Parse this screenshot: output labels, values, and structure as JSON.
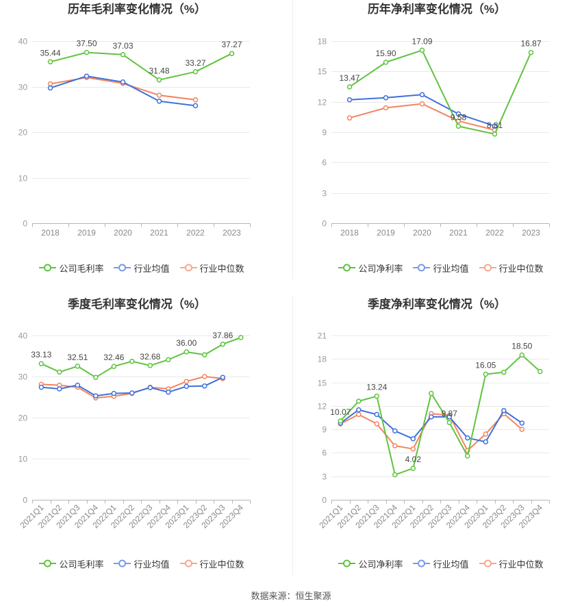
{
  "footer": {
    "source": "数据来源：恒生聚源"
  },
  "chart_data": [
    {
      "type": "line",
      "title": "历年毛利率变化情况（%）",
      "xlabel": "",
      "ylabel": "",
      "grid": true,
      "legend_position": "bottom",
      "categories": [
        "2018",
        "2019",
        "2020",
        "2021",
        "2022",
        "2023"
      ],
      "ylim": [
        0,
        40
      ],
      "yticks": [
        0,
        10,
        20,
        30,
        40
      ],
      "series": [
        {
          "name": "公司毛利率",
          "color": "#5fc33e",
          "values": [
            35.44,
            37.5,
            37.03,
            31.48,
            33.27,
            37.27
          ],
          "labels": [
            "35.44",
            "37.50",
            "37.03",
            "31.48",
            "33.27",
            "37.27"
          ]
        },
        {
          "name": "行业均值",
          "color": "#3e71dc",
          "values": [
            29.7,
            32.3,
            31.0,
            26.8,
            25.8,
            null
          ]
        },
        {
          "name": "行业中位数",
          "color": "#f4845e",
          "values": [
            30.6,
            32.0,
            30.7,
            28.1,
            27.1,
            null
          ]
        }
      ]
    },
    {
      "type": "line",
      "title": "历年净利率变化情况（%）",
      "xlabel": "",
      "ylabel": "",
      "grid": true,
      "legend_position": "bottom",
      "categories": [
        "2018",
        "2019",
        "2020",
        "2021",
        "2022",
        "2023"
      ],
      "ylim": [
        0,
        18
      ],
      "yticks": [
        0,
        3,
        6,
        9,
        12,
        15,
        18
      ],
      "series": [
        {
          "name": "公司净利率",
          "color": "#5fc33e",
          "values": [
            13.47,
            15.9,
            17.09,
            9.58,
            8.81,
            16.87
          ],
          "labels": [
            "13.47",
            "15.90",
            "17.09",
            "9.58",
            "8.81",
            "16.87"
          ]
        },
        {
          "name": "行业均值",
          "color": "#3e71dc",
          "values": [
            12.2,
            12.4,
            12.7,
            10.8,
            9.6,
            null
          ]
        },
        {
          "name": "行业中位数",
          "color": "#f4845e",
          "values": [
            10.4,
            11.4,
            11.8,
            10.1,
            9.2,
            null
          ]
        }
      ]
    },
    {
      "type": "line",
      "title": "季度毛利率变化情况（%）",
      "xlabel": "",
      "ylabel": "",
      "grid": true,
      "legend_position": "bottom",
      "categories": [
        "2021Q1",
        "2021Q2",
        "2021Q3",
        "2021Q4",
        "2022Q1",
        "2022Q2",
        "2022Q3",
        "2022Q4",
        "2023Q1",
        "2023Q2",
        "2023Q3",
        "2023Q4"
      ],
      "ylim": [
        0,
        40
      ],
      "yticks": [
        0,
        10,
        20,
        30,
        40
      ],
      "series": [
        {
          "name": "公司毛利率",
          "color": "#5fc33e",
          "values": [
            33.13,
            31.1,
            32.51,
            29.8,
            32.46,
            33.7,
            32.68,
            34.1,
            36.0,
            35.3,
            37.86,
            39.5
          ],
          "labels": [
            "33.13",
            null,
            "32.51",
            null,
            "32.46",
            null,
            "32.68",
            null,
            "36.00",
            null,
            "37.86",
            null
          ]
        },
        {
          "name": "行业均值",
          "color": "#3e71dc",
          "values": [
            27.4,
            27.0,
            27.9,
            25.3,
            25.9,
            26.0,
            27.3,
            26.2,
            27.6,
            27.7,
            29.8,
            null
          ]
        },
        {
          "name": "行业中位数",
          "color": "#f4845e",
          "values": [
            28.1,
            27.9,
            27.4,
            24.8,
            25.2,
            25.9,
            27.4,
            27.0,
            28.8,
            30.0,
            29.5,
            null
          ]
        }
      ]
    },
    {
      "type": "line",
      "title": "季度净利率变化情况（%）",
      "xlabel": "",
      "ylabel": "",
      "grid": true,
      "legend_position": "bottom",
      "categories": [
        "2021Q1",
        "2021Q2",
        "2021Q3",
        "2021Q4",
        "2022Q1",
        "2022Q2",
        "2022Q3",
        "2022Q4",
        "2023Q1",
        "2023Q2",
        "2023Q3",
        "2023Q4"
      ],
      "ylim": [
        0,
        21
      ],
      "yticks": [
        0,
        3,
        6,
        9,
        12,
        15,
        18,
        21
      ],
      "series": [
        {
          "name": "公司净利率",
          "color": "#5fc33e",
          "values": [
            10.07,
            12.6,
            13.24,
            3.2,
            4.02,
            13.6,
            9.87,
            5.6,
            16.05,
            16.3,
            18.5,
            16.4
          ],
          "labels": [
            "10.07",
            null,
            "13.24",
            null,
            "4.02",
            null,
            "9.87",
            null,
            "16.05",
            null,
            "18.50",
            null
          ]
        },
        {
          "name": "行业均值",
          "color": "#3e71dc",
          "values": [
            9.8,
            11.5,
            10.9,
            8.8,
            7.8,
            10.6,
            10.6,
            7.9,
            7.4,
            11.4,
            9.8,
            null
          ]
        },
        {
          "name": "行业中位数",
          "color": "#f4845e",
          "values": [
            9.7,
            10.9,
            9.7,
            6.9,
            6.5,
            11.0,
            10.8,
            6.3,
            8.4,
            11.0,
            9.0,
            null
          ]
        }
      ]
    }
  ]
}
